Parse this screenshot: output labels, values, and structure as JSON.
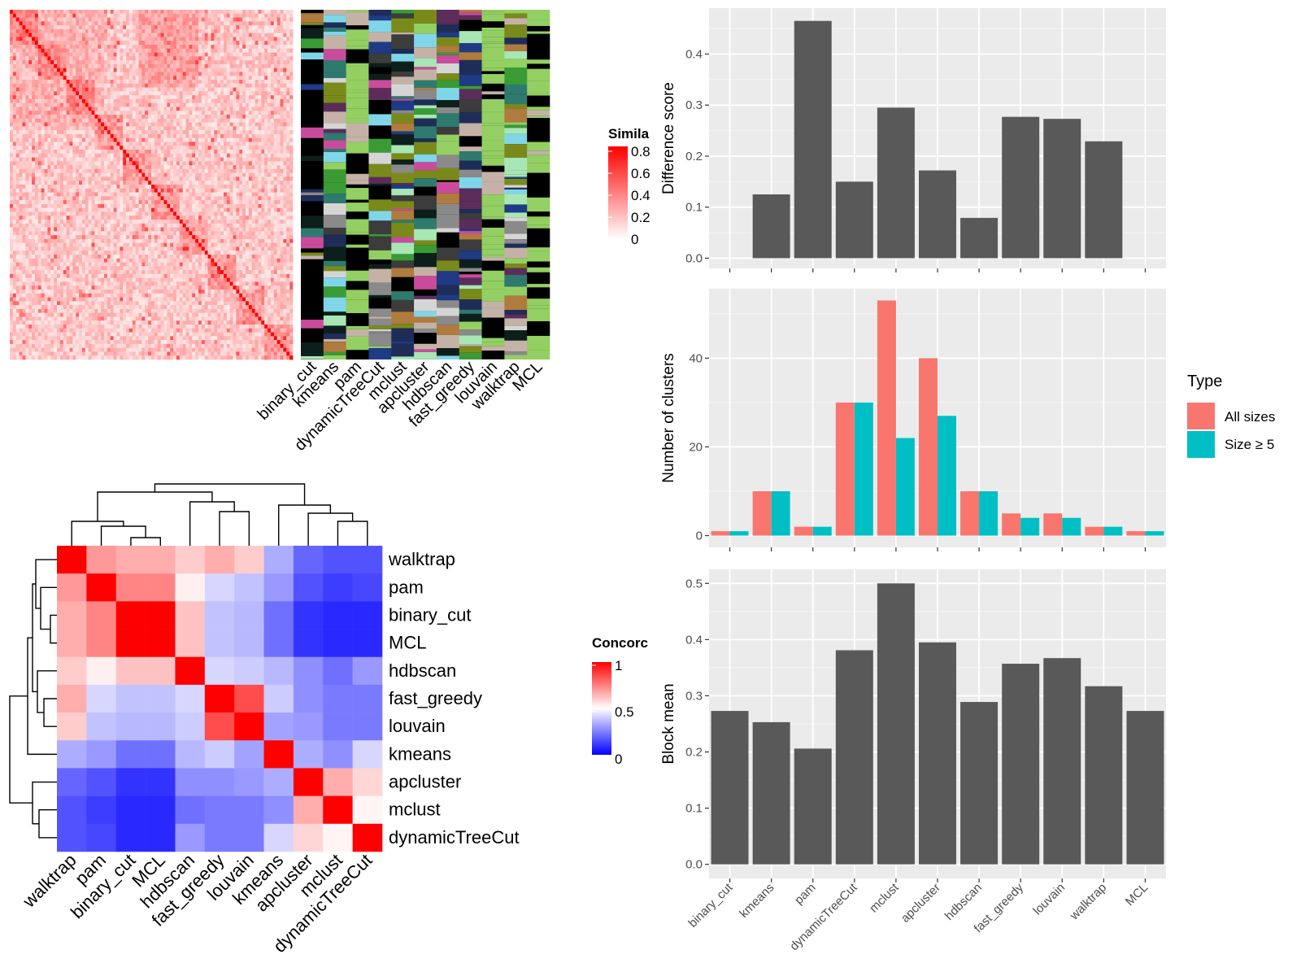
{
  "chart_data": [
    {
      "type": "heatmap",
      "subtype": "similarity-matrix",
      "legend": {
        "title": "Simila",
        "ticks": [
          "0.8",
          "0.6",
          "0.4",
          "0.2",
          "0"
        ],
        "colors": [
          "#ffffff",
          "#ff0000"
        ]
      },
      "annotation_columns": [
        "binary_cut",
        "kmeans",
        "pam",
        "dynamicTreeCut",
        "mclust",
        "apcluster",
        "hdbscan",
        "fast_greedy",
        "louvain",
        "walktrap",
        "MCL"
      ]
    },
    {
      "type": "heatmap",
      "subtype": "concordance",
      "rows": [
        "walktrap",
        "pam",
        "binary_cut",
        "MCL",
        "hdbscan",
        "fast_greedy",
        "louvain",
        "kmeans",
        "apcluster",
        "mclust",
        "dynamicTreeCut"
      ],
      "columns": [
        "walktrap",
        "pam",
        "binary_cut",
        "MCL",
        "hdbscan",
        "fast_greedy",
        "louvain",
        "kmeans",
        "apcluster",
        "mclust",
        "dynamicTreeCut"
      ],
      "values": [
        [
          1.0,
          0.7,
          0.66,
          0.66,
          0.6,
          0.66,
          0.6,
          0.34,
          0.2,
          0.16,
          0.16
        ],
        [
          0.7,
          1.0,
          0.74,
          0.74,
          0.53,
          0.42,
          0.38,
          0.3,
          0.16,
          0.12,
          0.14
        ],
        [
          0.66,
          0.74,
          1.0,
          1.0,
          0.62,
          0.38,
          0.36,
          0.22,
          0.1,
          0.08,
          0.08
        ],
        [
          0.66,
          0.74,
          1.0,
          1.0,
          0.62,
          0.38,
          0.36,
          0.22,
          0.1,
          0.08,
          0.08
        ],
        [
          0.6,
          0.53,
          0.62,
          0.62,
          1.0,
          0.42,
          0.4,
          0.36,
          0.28,
          0.22,
          0.3
        ],
        [
          0.66,
          0.42,
          0.38,
          0.38,
          0.42,
          1.0,
          0.85,
          0.4,
          0.28,
          0.24,
          0.24
        ],
        [
          0.6,
          0.38,
          0.36,
          0.36,
          0.4,
          0.85,
          1.0,
          0.32,
          0.3,
          0.24,
          0.24
        ],
        [
          0.34,
          0.3,
          0.22,
          0.22,
          0.36,
          0.4,
          0.32,
          1.0,
          0.34,
          0.28,
          0.42
        ],
        [
          0.2,
          0.16,
          0.1,
          0.1,
          0.28,
          0.28,
          0.3,
          0.34,
          1.0,
          0.66,
          0.58
        ],
        [
          0.16,
          0.12,
          0.08,
          0.08,
          0.22,
          0.24,
          0.24,
          0.28,
          0.66,
          1.0,
          0.52
        ],
        [
          0.16,
          0.14,
          0.08,
          0.08,
          0.3,
          0.24,
          0.24,
          0.42,
          0.58,
          0.52,
          1.0
        ]
      ],
      "legend": {
        "title": "Concorc",
        "ticks": [
          "1",
          "0.5",
          "0"
        ],
        "colors": [
          "#0000ff",
          "#ffffff",
          "#ff0000"
        ]
      }
    },
    {
      "type": "bar",
      "categories": [
        "binary_cut",
        "kmeans",
        "pam",
        "dynamicTreeCut",
        "mclust",
        "apcluster",
        "hdbscan",
        "fast_greedy",
        "louvain",
        "walktrap",
        "MCL"
      ],
      "values": [
        0,
        0.125,
        0.465,
        0.15,
        0.295,
        0.172,
        0.079,
        0.277,
        0.273,
        0.229,
        0
      ],
      "ylabel": "Difference score",
      "ylim": [
        -0.02,
        0.49
      ],
      "yticks": [
        "0.0",
        "0.1",
        "0.2",
        "0.3",
        "0.4"
      ],
      "color": "#595959"
    },
    {
      "type": "bar",
      "categories": [
        "binary_cut",
        "kmeans",
        "pam",
        "dynamicTreeCut",
        "mclust",
        "apcluster",
        "hdbscan",
        "fast_greedy",
        "louvain",
        "walktrap",
        "MCL"
      ],
      "series": [
        {
          "name": "All sizes",
          "color": "#f8766d",
          "values": [
            1,
            10,
            2,
            30,
            53,
            40,
            10,
            5,
            5,
            2,
            1
          ]
        },
        {
          "name": "Size ≥ 5",
          "color": "#00bfc4",
          "values": [
            1,
            10,
            2,
            30,
            22,
            27,
            10,
            4,
            4,
            2,
            1
          ]
        }
      ],
      "ylabel": "Number of clusters",
      "ylim": [
        -2.65,
        55.65
      ],
      "yticks": [
        "0",
        "20",
        "40"
      ],
      "legend": {
        "title": "Type",
        "position": "right"
      }
    },
    {
      "type": "bar",
      "categories": [
        "binary_cut",
        "kmeans",
        "pam",
        "dynamicTreeCut",
        "mclust",
        "apcluster",
        "hdbscan",
        "fast_greedy",
        "louvain",
        "walktrap",
        "MCL"
      ],
      "values": [
        0.273,
        0.253,
        0.206,
        0.381,
        0.5,
        0.395,
        0.289,
        0.357,
        0.367,
        0.317,
        0.273
      ],
      "ylabel": "Block mean",
      "ylim": [
        -0.025,
        0.525
      ],
      "yticks": [
        "0.0",
        "0.1",
        "0.2",
        "0.3",
        "0.4",
        "0.5"
      ],
      "color": "#595959"
    }
  ]
}
